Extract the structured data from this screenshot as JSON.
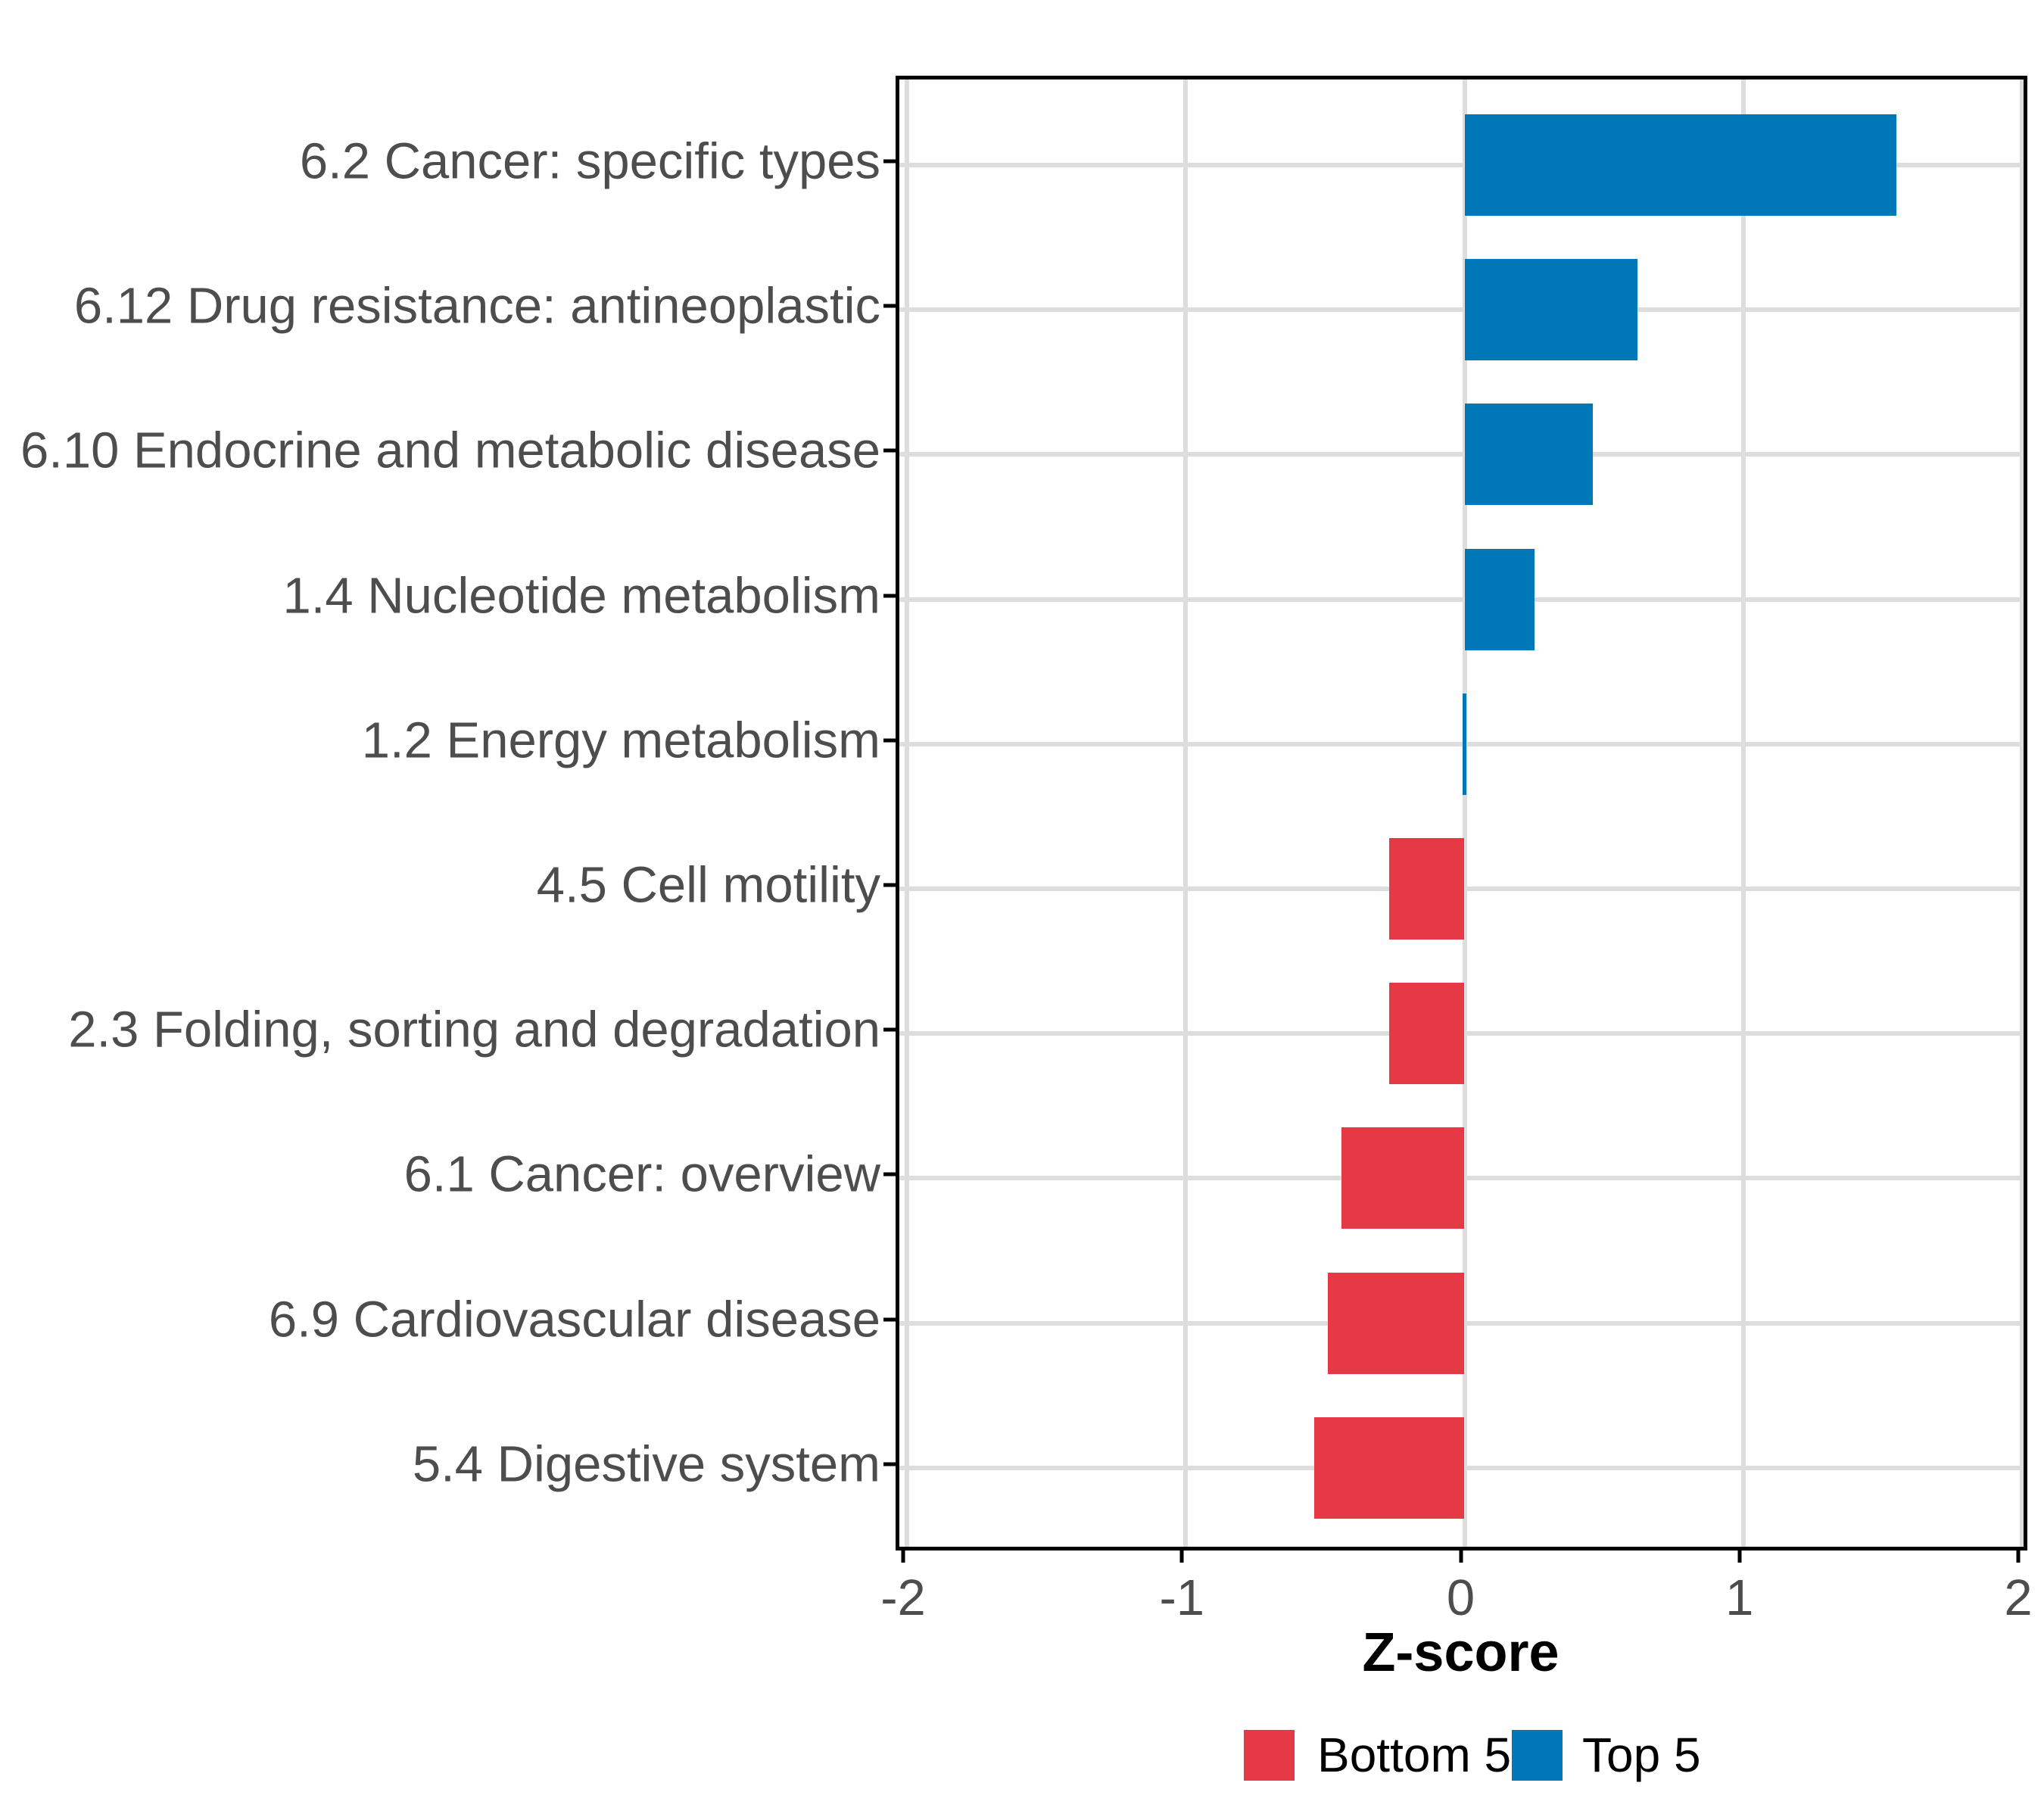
{
  "chart_data": {
    "type": "bar",
    "orientation": "horizontal",
    "title": "",
    "xlabel": "Z-score",
    "ylabel": "",
    "xlim": [
      -2,
      2
    ],
    "x_ticks": [
      -2,
      -1,
      0,
      1,
      2
    ],
    "grid": "major-only",
    "legend_position": "bottom-center",
    "categories": [
      "6.2 Cancer: specific types",
      "6.12 Drug resistance: antineoplastic",
      "6.10 Endocrine and metabolic disease",
      "1.4 Nucleotide metabolism",
      "1.2 Energy metabolism",
      "4.5 Cell motility",
      "2.3 Folding, sorting and degradation",
      "6.1 Cancer: overview",
      "6.9 Cardiovascular disease",
      "5.4 Digestive system"
    ],
    "values": [
      1.55,
      0.62,
      0.46,
      0.25,
      0.0,
      -0.27,
      -0.27,
      -0.44,
      -0.49,
      -0.54
    ],
    "groups": [
      "Top 5",
      "Top 5",
      "Top 5",
      "Top 5",
      "Top 5",
      "Bottom 5",
      "Bottom 5",
      "Bottom 5",
      "Bottom 5",
      "Bottom 5"
    ],
    "series_colors": {
      "Top 5": "#0077B6",
      "Bottom 5": "#E63946"
    }
  },
  "axis": {
    "title": "Z-score",
    "tick_labels": [
      "-2",
      "-1",
      "0",
      "1",
      "2"
    ]
  },
  "legend": {
    "items": [
      {
        "label": "Bottom 5",
        "color": "#E63946"
      },
      {
        "label": "Top 5",
        "color": "#0077B6"
      }
    ]
  },
  "style": {
    "bar_blue": "#0077B6",
    "bar_red": "#E63946",
    "gridline_color": "#DDDDDD",
    "panel_border_color": "#000000",
    "tick_color": "#000000",
    "axis_text_color": "#4D4D4D",
    "title_text_color": "#000000",
    "background": "#FFFFFF"
  }
}
